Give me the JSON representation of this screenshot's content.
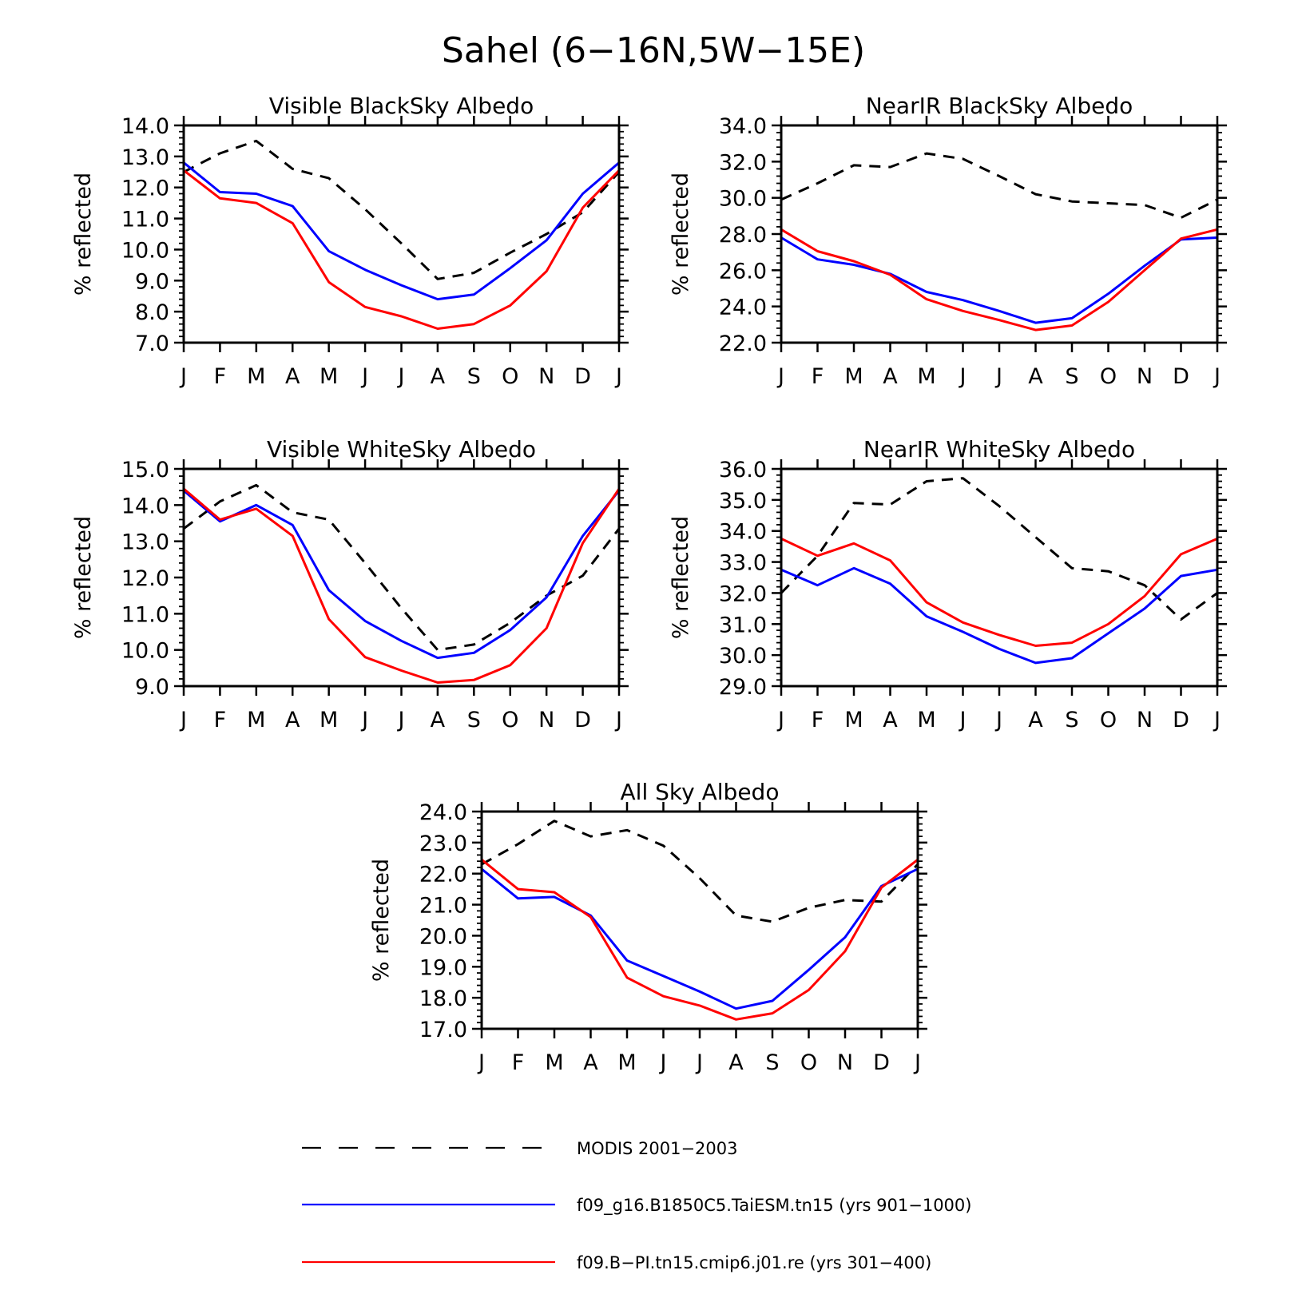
{
  "figure": {
    "title": "Sahel (6−16N,5W−15E)"
  },
  "series_styles": [
    {
      "key": "modis",
      "color": "#000000",
      "dash": "dashed"
    },
    {
      "key": "taiesm",
      "color": "#0000ff",
      "dash": "solid"
    },
    {
      "key": "cmip6",
      "color": "#ff0000",
      "dash": "solid"
    }
  ],
  "legend": {
    "entries": [
      {
        "key": "modis",
        "label": "MODIS 2001−2003"
      },
      {
        "key": "taiesm",
        "label": "f09_g16.B1850C5.TaiESM.tn15 (yrs 901−1000)"
      },
      {
        "key": "cmip6",
        "label": "f09.B−PI.tn15.cmip6.j01.re (yrs 301−400)"
      }
    ]
  },
  "chart_data": [
    {
      "type": "line",
      "title": "Visible BlackSky Albedo",
      "ylabel": "% reflected",
      "categories": [
        "J",
        "F",
        "M",
        "A",
        "M",
        "J",
        "J",
        "A",
        "S",
        "O",
        "N",
        "D",
        "J"
      ],
      "ylim": [
        7.0,
        14.0
      ],
      "yticks": [
        "7.0",
        "8.0",
        "9.0",
        "10.0",
        "11.0",
        "12.0",
        "13.0",
        "14.0"
      ],
      "series": [
        {
          "key": "modis",
          "values": [
            12.5,
            13.1,
            13.5,
            12.6,
            12.3,
            11.3,
            10.2,
            9.05,
            9.25,
            9.9,
            10.5,
            11.2,
            12.5
          ]
        },
        {
          "key": "taiesm",
          "values": [
            12.8,
            11.85,
            11.8,
            11.4,
            9.95,
            9.35,
            8.85,
            8.4,
            8.55,
            9.4,
            10.3,
            11.8,
            12.8
          ]
        },
        {
          "key": "cmip6",
          "values": [
            12.55,
            11.65,
            11.5,
            10.85,
            8.95,
            8.15,
            7.85,
            7.45,
            7.6,
            8.2,
            9.3,
            11.35,
            12.55
          ]
        }
      ]
    },
    {
      "type": "line",
      "title": "NearIR BlackSky Albedo",
      "ylabel": "% reflected",
      "categories": [
        "J",
        "F",
        "M",
        "A",
        "M",
        "J",
        "J",
        "A",
        "S",
        "O",
        "N",
        "D",
        "J"
      ],
      "ylim": [
        22.0,
        34.0
      ],
      "yticks": [
        "22.0",
        "24.0",
        "26.0",
        "28.0",
        "30.0",
        "32.0",
        "34.0"
      ],
      "series": [
        {
          "key": "modis",
          "values": [
            29.9,
            30.8,
            31.8,
            31.7,
            32.45,
            32.15,
            31.2,
            30.2,
            29.8,
            29.7,
            29.6,
            28.9,
            29.9
          ]
        },
        {
          "key": "taiesm",
          "values": [
            27.8,
            26.6,
            26.3,
            25.8,
            24.8,
            24.35,
            23.75,
            23.1,
            23.35,
            24.7,
            26.25,
            27.7,
            27.8
          ]
        },
        {
          "key": "cmip6",
          "values": [
            28.25,
            27.05,
            26.5,
            25.75,
            24.4,
            23.75,
            23.25,
            22.7,
            22.95,
            24.25,
            26.0,
            27.75,
            28.25
          ]
        }
      ]
    },
    {
      "type": "line",
      "title": "Visible WhiteSky Albedo",
      "ylabel": "% reflected",
      "categories": [
        "J",
        "F",
        "M",
        "A",
        "M",
        "J",
        "J",
        "A",
        "S",
        "O",
        "N",
        "D",
        "J"
      ],
      "ylim": [
        9.0,
        15.0
      ],
      "yticks": [
        "9.0",
        "10.0",
        "11.0",
        "12.0",
        "13.0",
        "14.0",
        "15.0"
      ],
      "series": [
        {
          "key": "modis",
          "values": [
            13.35,
            14.1,
            14.55,
            13.8,
            13.6,
            12.4,
            11.15,
            10.0,
            10.15,
            10.75,
            11.5,
            12.05,
            13.35
          ]
        },
        {
          "key": "taiesm",
          "values": [
            14.4,
            13.55,
            14.0,
            13.45,
            11.65,
            10.8,
            10.25,
            9.78,
            9.92,
            10.55,
            11.45,
            13.15,
            14.4
          ]
        },
        {
          "key": "cmip6",
          "values": [
            14.45,
            13.6,
            13.9,
            13.15,
            10.85,
            9.8,
            9.43,
            9.1,
            9.17,
            9.58,
            10.6,
            12.95,
            14.45
          ]
        }
      ]
    },
    {
      "type": "line",
      "title": "NearIR WhiteSky Albedo",
      "ylabel": "% reflected",
      "categories": [
        "J",
        "F",
        "M",
        "A",
        "M",
        "J",
        "J",
        "A",
        "S",
        "O",
        "N",
        "D",
        "J"
      ],
      "ylim": [
        29.0,
        36.0
      ],
      "yticks": [
        "29.0",
        "30.0",
        "31.0",
        "32.0",
        "33.0",
        "34.0",
        "35.0",
        "36.0"
      ],
      "series": [
        {
          "key": "modis",
          "values": [
            32.0,
            33.2,
            34.9,
            34.85,
            35.6,
            35.7,
            34.8,
            33.8,
            32.8,
            32.7,
            32.25,
            31.15,
            32.0
          ]
        },
        {
          "key": "taiesm",
          "values": [
            32.75,
            32.25,
            32.8,
            32.3,
            31.25,
            30.75,
            30.2,
            29.75,
            29.9,
            30.7,
            31.5,
            32.55,
            32.75
          ]
        },
        {
          "key": "cmip6",
          "values": [
            33.75,
            33.2,
            33.6,
            33.05,
            31.7,
            31.05,
            30.65,
            30.3,
            30.4,
            31.0,
            31.9,
            33.25,
            33.75
          ]
        }
      ]
    },
    {
      "type": "line",
      "title": "All Sky Albedo",
      "ylabel": "% reflected",
      "categories": [
        "J",
        "F",
        "M",
        "A",
        "M",
        "J",
        "J",
        "A",
        "S",
        "O",
        "N",
        "D",
        "J"
      ],
      "ylim": [
        17.0,
        24.0
      ],
      "yticks": [
        "17.0",
        "18.0",
        "19.0",
        "20.0",
        "21.0",
        "22.0",
        "23.0",
        "24.0"
      ],
      "series": [
        {
          "key": "modis",
          "values": [
            22.3,
            22.95,
            23.7,
            23.2,
            23.4,
            22.9,
            21.85,
            20.65,
            20.45,
            20.9,
            21.15,
            21.1,
            22.3
          ]
        },
        {
          "key": "taiesm",
          "values": [
            22.15,
            21.2,
            21.25,
            20.65,
            19.2,
            18.7,
            18.2,
            17.65,
            17.9,
            18.9,
            19.95,
            21.6,
            22.15
          ]
        },
        {
          "key": "cmip6",
          "values": [
            22.45,
            21.5,
            21.4,
            20.6,
            18.65,
            18.05,
            17.75,
            17.3,
            17.5,
            18.25,
            19.5,
            21.55,
            22.45
          ]
        }
      ]
    }
  ]
}
